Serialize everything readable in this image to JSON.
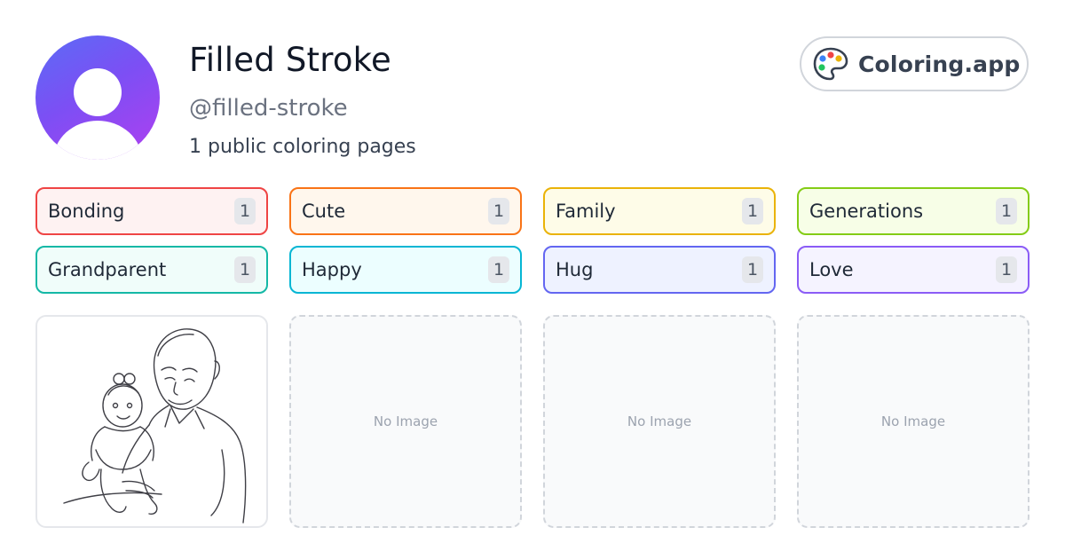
{
  "profile": {
    "name": "Filled Stroke",
    "handle": "@filled-stroke",
    "count_text": "1 public coloring pages"
  },
  "brand": {
    "name": "Coloring.app",
    "icon": "palette-icon"
  },
  "tags": [
    {
      "label": "Bonding",
      "count": "1",
      "border": "#ef4444",
      "bg": "#fef2f2"
    },
    {
      "label": "Cute",
      "count": "1",
      "border": "#f97316",
      "bg": "#fff7ed"
    },
    {
      "label": "Family",
      "count": "1",
      "border": "#eab308",
      "bg": "#fefce8"
    },
    {
      "label": "Generations",
      "count": "1",
      "border": "#84cc16",
      "bg": "#f7fee7"
    },
    {
      "label": "Grandparent",
      "count": "1",
      "border": "#14b8a6",
      "bg": "#f0fdfa"
    },
    {
      "label": "Happy",
      "count": "1",
      "border": "#06b6d4",
      "bg": "#ecfeff"
    },
    {
      "label": "Hug",
      "count": "1",
      "border": "#6366f1",
      "bg": "#eef2ff"
    },
    {
      "label": "Love",
      "count": "1",
      "border": "#8b5cf6",
      "bg": "#f5f3ff"
    }
  ],
  "gallery": {
    "empty_label": "No Image",
    "placeholder_1": "No Image",
    "placeholder_2": "No Image",
    "placeholder_3": "No Image"
  }
}
